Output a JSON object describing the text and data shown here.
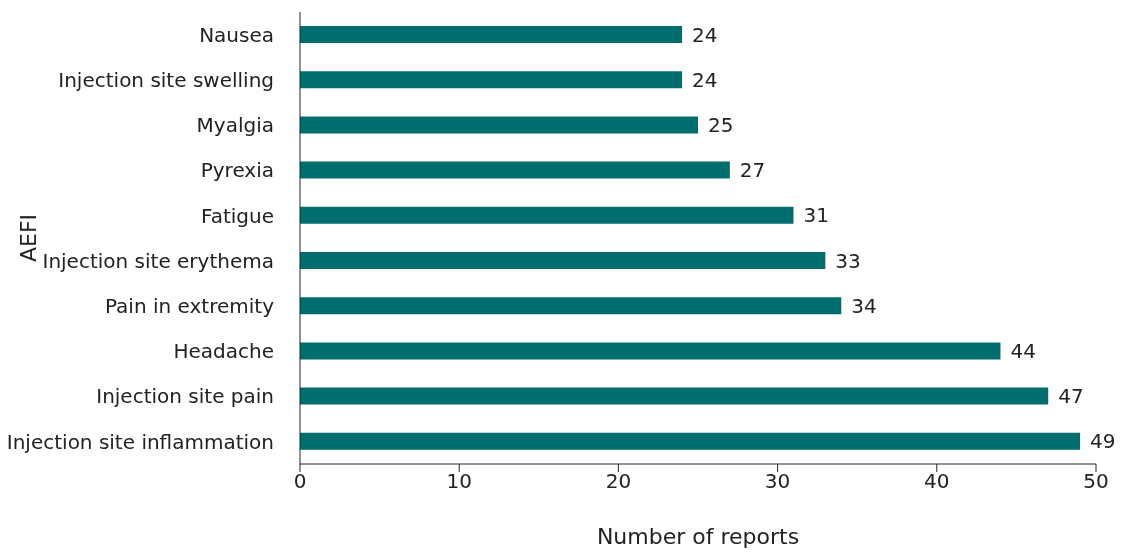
{
  "chart_data": {
    "type": "bar",
    "orientation": "horizontal",
    "xlabel": "Number of reports",
    "ylabel": "AEFI",
    "categories": [
      "Nausea",
      "Injection site swelling",
      "Myalgia",
      "Pyrexia",
      "Fatigue",
      "Injection site erythema",
      "Pain in extremity",
      "Headache",
      "Injection site pain",
      "Injection site inflammation"
    ],
    "values": [
      24,
      24,
      25,
      27,
      31,
      33,
      34,
      44,
      47,
      49
    ],
    "color": "#006d6f",
    "xlim": [
      0,
      50
    ],
    "xticks": [
      0,
      10,
      20,
      30,
      40,
      50
    ],
    "grid": false,
    "legend": false,
    "data_labels": true
  }
}
